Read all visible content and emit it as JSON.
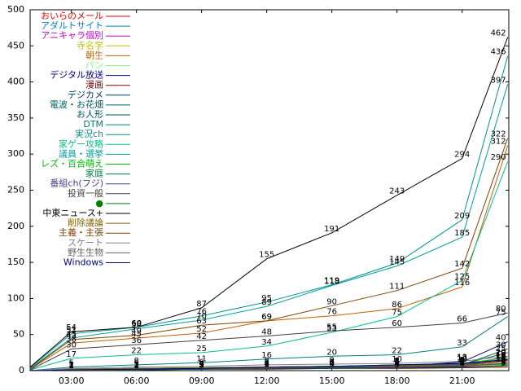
{
  "chart_data": {
    "type": "line",
    "x": [
      1.1,
      3,
      6,
      9,
      12,
      15,
      18,
      21,
      23.1
    ],
    "xlim": [
      1.1,
      23.15
    ],
    "xticks": [
      {
        "value": 3,
        "label": "03:00"
      },
      {
        "value": 6,
        "label": "06:00"
      },
      {
        "value": 9,
        "label": "09:00"
      },
      {
        "value": 12,
        "label": "12:00"
      },
      {
        "value": 15,
        "label": "15:00"
      },
      {
        "value": 18,
        "label": "18:00"
      },
      {
        "value": 21,
        "label": "21:00"
      }
    ],
    "ylim": [
      0,
      500
    ],
    "yticks": [
      0,
      50,
      100,
      150,
      200,
      250,
      300,
      350,
      400,
      450,
      500
    ],
    "legend": "upper left",
    "series": [
      {
        "name": "おいらのメール",
        "color": "#e00000",
        "values": [
          0,
          2,
          3,
          4,
          5,
          6,
          7,
          9,
          14
        ]
      },
      {
        "name": "アダルトサイト",
        "color": "#0080c0",
        "values": [
          0,
          1,
          2,
          3,
          4,
          5,
          6,
          8,
          12
        ]
      },
      {
        "name": "アニキャラ個別",
        "color": "#c000c0",
        "values": [
          0,
          1,
          2,
          3,
          3,
          4,
          5,
          6,
          10
        ]
      },
      {
        "name": "寺名学",
        "color": "#c0c000",
        "values": [
          0,
          1,
          1,
          2,
          3,
          3,
          4,
          5,
          8
        ]
      },
      {
        "name": "朝生",
        "color": "#c06000",
        "values": [
          2,
          38,
          45,
          52,
          69,
          76,
          86,
          116,
          312
        ]
      },
      {
        "name": "パン",
        "color": "#80ff80",
        "values": [
          0,
          1,
          1,
          2,
          2,
          3,
          3,
          4,
          6
        ]
      },
      {
        "name": "デジタル放送",
        "color": "#000080",
        "values": [
          0,
          1,
          2,
          3,
          4,
          5,
          6,
          12,
          40
        ]
      },
      {
        "name": "漫画",
        "color": "#800000",
        "values": [
          0,
          1,
          1,
          2,
          2,
          3,
          3,
          4,
          5
        ]
      },
      {
        "name": "デジカメ",
        "color": "#004060",
        "values": [
          0,
          1,
          2,
          2,
          3,
          4,
          4,
          6,
          20
        ]
      },
      {
        "name": "電波・お花畑",
        "color": "#006060",
        "values": [
          0,
          2,
          3,
          4,
          5,
          6,
          7,
          9,
          16
        ]
      },
      {
        "name": "お人形",
        "color": "#005050",
        "values": [
          0,
          1,
          1,
          2,
          3,
          3,
          4,
          5,
          7
        ]
      },
      {
        "name": "DTM",
        "color": "#008080",
        "values": [
          0,
          5,
          8,
          11,
          16,
          20,
          22,
          33,
          75
        ]
      },
      {
        "name": "実況ch",
        "color": "#009090",
        "values": [
          4,
          51,
          60,
          76,
          95,
          119,
          149,
          209,
          436
        ]
      },
      {
        "name": "家ゲー攻略",
        "color": "#00c090",
        "values": [
          1,
          17,
          22,
          25,
          34,
          53,
          75,
          125,
          290
        ]
      },
      {
        "name": "議員・選挙",
        "color": "#00a0a0",
        "values": [
          3,
          45,
          58,
          70,
          89,
          118,
          145,
          185,
          397
        ]
      },
      {
        "name": "レズ・百合萌え",
        "color": "#00c000",
        "values": [
          0,
          2,
          3,
          4,
          5,
          6,
          8,
          10,
          18
        ]
      },
      {
        "name": "家庭",
        "color": "#008040",
        "values": [
          0,
          1,
          2,
          3,
          4,
          5,
          6,
          8,
          30
        ]
      },
      {
        "name": "番組ch(フジ)",
        "color": "#404080",
        "values": [
          0,
          1,
          2,
          3,
          4,
          5,
          7,
          9,
          25
        ]
      },
      {
        "name": "投資一般",
        "color": "#404040",
        "values": [
          1,
          30,
          36,
          42,
          48,
          55,
          60,
          66,
          80
        ]
      },
      {
        "name": "●",
        "color": "#008000",
        "values": [
          0,
          1,
          2,
          3,
          4,
          5,
          6,
          7,
          10
        ]
      },
      {
        "name": "中東ニュース+",
        "color": "#000000",
        "values": [
          5,
          54,
          60,
          87,
          155,
          191,
          243,
          294,
          462
        ]
      },
      {
        "name": "削除議論",
        "color": "#806000",
        "values": [
          0,
          2,
          3,
          4,
          5,
          6,
          7,
          8,
          12
        ]
      },
      {
        "name": "主義・主張",
        "color": "#804000",
        "values": [
          2,
          43,
          49,
          63,
          69,
          90,
          111,
          142,
          322
        ]
      },
      {
        "name": "スケート",
        "color": "#808080",
        "values": [
          0,
          3,
          5,
          6,
          8,
          9,
          10,
          13,
          20
        ]
      },
      {
        "name": "野生生物",
        "color": "#606060",
        "values": [
          0,
          1,
          2,
          3,
          4,
          5,
          6,
          7,
          9
        ]
      },
      {
        "name": "Windows",
        "color": "#000080",
        "values": [
          0,
          1,
          2,
          3,
          5,
          6,
          8,
          10,
          15
        ]
      }
    ]
  }
}
